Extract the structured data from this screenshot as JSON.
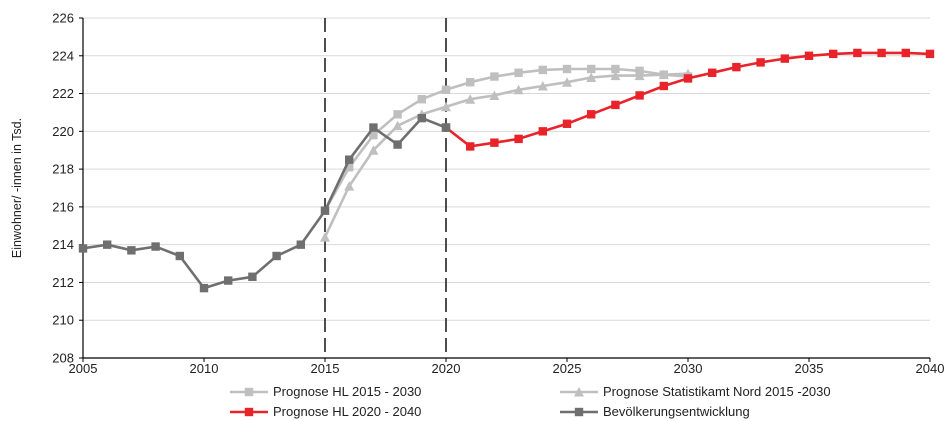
{
  "chart_data": {
    "type": "line",
    "ylabel": "Einwohner/ -innen in Tsd.",
    "xlim": [
      2005,
      2040
    ],
    "ylim": [
      208,
      226
    ],
    "x_ticks": [
      "2005",
      "2010",
      "2015",
      "2020",
      "2025",
      "2030",
      "2035",
      "2040"
    ],
    "y_ticks": [
      "208",
      "210",
      "212",
      "214",
      "216",
      "218",
      "220",
      "222",
      "224",
      "226"
    ],
    "grid": "horizontal",
    "vertical_markers": [
      2015,
      2020
    ],
    "legend_position": "bottom",
    "series": [
      {
        "name": "Prognose HL 2015 - 2030",
        "color": "#bfbfbf",
        "marker": "square",
        "x": [
          2015,
          2016,
          2017,
          2018,
          2019,
          2020,
          2021,
          2022,
          2023,
          2024,
          2025,
          2026,
          2027,
          2028,
          2029,
          2030
        ],
        "values": [
          215.8,
          218.1,
          219.8,
          220.9,
          221.7,
          222.2,
          222.6,
          222.9,
          223.1,
          223.25,
          223.3,
          223.3,
          223.3,
          223.2,
          223.0,
          222.9
        ]
      },
      {
        "name": "Prognose Statistikamt Nord 2015 -2030",
        "color": "#bfbfbf",
        "marker": "triangle",
        "x": [
          2015,
          2016,
          2017,
          2018,
          2019,
          2020,
          2021,
          2022,
          2023,
          2024,
          2025,
          2026,
          2027,
          2028,
          2029,
          2030
        ],
        "values": [
          214.4,
          217.1,
          219.0,
          220.3,
          220.9,
          221.3,
          221.7,
          221.9,
          222.2,
          222.4,
          222.6,
          222.85,
          222.95,
          222.95,
          223.0,
          223.05
        ]
      },
      {
        "name": "Prognose HL 2020 - 2040",
        "color": "#e8232a",
        "marker": "square",
        "x": [
          2020,
          2021,
          2022,
          2023,
          2024,
          2025,
          2026,
          2027,
          2028,
          2029,
          2030,
          2031,
          2032,
          2033,
          2034,
          2035,
          2036,
          2037,
          2038,
          2039,
          2040
        ],
        "values": [
          220.2,
          219.2,
          219.4,
          219.6,
          220.0,
          220.4,
          220.9,
          221.4,
          221.9,
          222.4,
          222.8,
          223.1,
          223.4,
          223.65,
          223.85,
          224.0,
          224.1,
          224.15,
          224.15,
          224.15,
          224.1
        ]
      },
      {
        "name": "Bevölkerungsentwicklung",
        "color": "#6f6f6f",
        "marker": "square",
        "x": [
          2005,
          2006,
          2007,
          2008,
          2009,
          2010,
          2011,
          2012,
          2013,
          2014,
          2015,
          2016,
          2017,
          2018,
          2019,
          2020
        ],
        "values": [
          213.8,
          214.0,
          213.7,
          213.9,
          213.4,
          211.7,
          212.1,
          212.3,
          213.4,
          214.0,
          215.8,
          218.5,
          220.2,
          219.3,
          220.7,
          220.2
        ]
      }
    ]
  }
}
